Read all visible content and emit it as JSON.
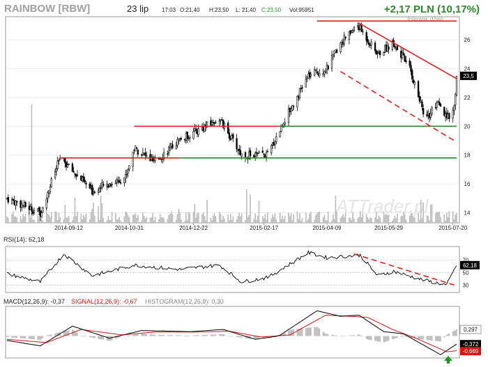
{
  "header": {
    "ticker": "RAINBOW [RBW]",
    "date": "23 lip",
    "time": "17:03",
    "open": "O:21,40",
    "high": "H:23,50",
    "low": "L: 21,40",
    "close": "C:23,50",
    "volume": "Vol:95951",
    "change": "+2,17 PLN (10,17%)",
    "interval": "Interwał: dzień",
    "watermark": "ATTrader.pl"
  },
  "colors": {
    "candle": "#000000",
    "volume": "#c0c0c0",
    "resistance": "#e02020",
    "support": "#2a8a2a",
    "change": "#2a8a2a",
    "rsi_line": "#000000",
    "macd_line": "#000000",
    "signal_line": "#dd1111",
    "histogram": "#bdbdbd",
    "arrow": "#1a9a1a"
  },
  "chart_data": [
    {
      "type": "candlestick",
      "panel": "price",
      "x_tick_labels": [
        "2014-09-12",
        "2014-10-31",
        "2014-12-22",
        "2015-02-17",
        "2015-04-09",
        "2015-05-29",
        "2015-07-20"
      ],
      "y_ticks": [
        14,
        16,
        18,
        20,
        22,
        24,
        26
      ],
      "ylim": [
        13.3,
        27.6
      ],
      "last_price_label": "23,5",
      "levels": [
        {
          "kind": "support",
          "price": 17.8
        },
        {
          "kind": "support",
          "price": 20.0
        },
        {
          "kind": "resistance",
          "price": 17.8
        },
        {
          "kind": "resistance",
          "price": 20.0
        },
        {
          "kind": "resistance",
          "price": 27.3
        }
      ],
      "key_points": [
        {
          "date": "2014-07-24",
          "close": 15.0
        },
        {
          "date": "2014-08-20",
          "close": 14.0
        },
        {
          "date": "2014-09-05",
          "close": 17.8
        },
        {
          "date": "2014-10-01",
          "close": 15.5
        },
        {
          "date": "2014-10-28",
          "close": 16.5
        },
        {
          "date": "2014-11-04",
          "close": 18.5
        },
        {
          "date": "2014-11-20",
          "close": 17.5
        },
        {
          "date": "2014-12-10",
          "close": 19.0
        },
        {
          "date": "2015-01-12",
          "close": 20.5
        },
        {
          "date": "2015-01-30",
          "close": 18.0
        },
        {
          "date": "2015-02-20",
          "close": 18.0
        },
        {
          "date": "2015-03-06",
          "close": 20.5
        },
        {
          "date": "2015-03-25",
          "close": 23.5
        },
        {
          "date": "2015-04-09",
          "close": 24.0
        },
        {
          "date": "2015-04-20",
          "close": 25.8
        },
        {
          "date": "2015-05-04",
          "close": 27.0
        },
        {
          "date": "2015-05-20",
          "close": 25.0
        },
        {
          "date": "2015-06-02",
          "close": 25.8
        },
        {
          "date": "2015-06-15",
          "close": 24.0
        },
        {
          "date": "2015-06-26",
          "close": 21.0
        },
        {
          "date": "2015-07-01",
          "close": 20.8
        },
        {
          "date": "2015-07-08",
          "close": 21.5
        },
        {
          "date": "2015-07-15",
          "close": 20.5
        },
        {
          "date": "2015-07-21",
          "close": 21.3
        },
        {
          "date": "2015-07-23",
          "close": 23.5
        }
      ]
    },
    {
      "type": "line",
      "panel": "rsi",
      "label": "RSI(14): 62,18",
      "y_ticks": [
        30,
        50,
        70
      ],
      "ylim": [
        18,
        92
      ],
      "last_value_label": "62,18",
      "key_points": [
        {
          "date": "2014-07-24",
          "value": 48
        },
        {
          "date": "2014-08-20",
          "value": 35
        },
        {
          "date": "2014-09-08",
          "value": 80
        },
        {
          "date": "2014-10-01",
          "value": 45
        },
        {
          "date": "2014-11-04",
          "value": 62
        },
        {
          "date": "2014-12-10",
          "value": 55
        },
        {
          "date": "2015-01-12",
          "value": 62
        },
        {
          "date": "2015-01-30",
          "value": 35
        },
        {
          "date": "2015-02-20",
          "value": 42
        },
        {
          "date": "2015-03-25",
          "value": 82
        },
        {
          "date": "2015-04-09",
          "value": 74
        },
        {
          "date": "2015-04-22",
          "value": 76
        },
        {
          "date": "2015-05-06",
          "value": 78
        },
        {
          "date": "2015-05-20",
          "value": 45
        },
        {
          "date": "2015-06-02",
          "value": 52
        },
        {
          "date": "2015-06-26",
          "value": 38
        },
        {
          "date": "2015-07-15",
          "value": 30
        },
        {
          "date": "2015-07-23",
          "value": 62
        }
      ]
    },
    {
      "type": "line",
      "panel": "macd",
      "labels": {
        "macd": "MACD(12,26,9): -0,37",
        "signal": "SIGNAL(12,26,9): -0,67",
        "histogram": "HISTOGRAM(12,26,9): 0,30"
      },
      "last_value_labels": {
        "histogram": "0,297",
        "macd": "-0,372",
        "signal": "-0,669"
      },
      "ylim": [
        -1.0,
        1.35
      ],
      "key_points_macd": [
        {
          "date": "2014-07-24",
          "value": -0.2
        },
        {
          "date": "2014-08-20",
          "value": -0.45
        },
        {
          "date": "2014-09-15",
          "value": 0.45
        },
        {
          "date": "2014-10-15",
          "value": -0.1
        },
        {
          "date": "2014-11-10",
          "value": 0.25
        },
        {
          "date": "2014-12-20",
          "value": 0.2
        },
        {
          "date": "2015-01-15",
          "value": 0.3
        },
        {
          "date": "2015-02-10",
          "value": -0.15
        },
        {
          "date": "2015-03-01",
          "value": 0.0
        },
        {
          "date": "2015-04-01",
          "value": 1.15
        },
        {
          "date": "2015-04-20",
          "value": 0.9
        },
        {
          "date": "2015-05-05",
          "value": 0.95
        },
        {
          "date": "2015-05-25",
          "value": 0.2
        },
        {
          "date": "2015-06-10",
          "value": 0.1
        },
        {
          "date": "2015-07-10",
          "value": -0.85
        },
        {
          "date": "2015-07-23",
          "value": -0.37
        }
      ],
      "key_points_signal": [
        {
          "date": "2014-07-24",
          "value": -0.15
        },
        {
          "date": "2014-08-25",
          "value": -0.3
        },
        {
          "date": "2014-09-22",
          "value": 0.3
        },
        {
          "date": "2014-10-25",
          "value": 0.05
        },
        {
          "date": "2014-11-20",
          "value": 0.18
        },
        {
          "date": "2014-12-25",
          "value": 0.18
        },
        {
          "date": "2015-01-20",
          "value": 0.22
        },
        {
          "date": "2015-02-15",
          "value": -0.05
        },
        {
          "date": "2015-03-10",
          "value": 0.05
        },
        {
          "date": "2015-04-08",
          "value": 0.95
        },
        {
          "date": "2015-04-28",
          "value": 0.9
        },
        {
          "date": "2015-05-12",
          "value": 0.85
        },
        {
          "date": "2015-06-01",
          "value": 0.3
        },
        {
          "date": "2015-06-20",
          "value": -0.1
        },
        {
          "date": "2015-07-15",
          "value": -0.72
        },
        {
          "date": "2015-07-23",
          "value": -0.67
        }
      ]
    }
  ]
}
